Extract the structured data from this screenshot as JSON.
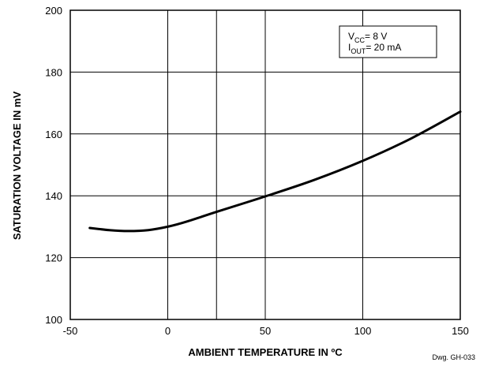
{
  "chart_data": {
    "type": "line",
    "x_ticks": [
      "-50",
      "0",
      "50",
      "100",
      "150"
    ],
    "y_ticks": [
      "100",
      "120",
      "140",
      "160",
      "180",
      "200"
    ],
    "xlim": [
      -50,
      150
    ],
    "ylim": [
      100,
      200
    ],
    "x_gridlines": [
      -50,
      0,
      25,
      50,
      100,
      150
    ],
    "y_gridlines": [
      100,
      120,
      140,
      160,
      180,
      200
    ],
    "grid": true,
    "xlabel": "AMBIENT TEMPERATURE IN ºC",
    "ylabel": "SATURATION VOLTAGE IN mV",
    "series": [
      {
        "x": [
          -40,
          -30,
          -20,
          -10,
          0,
          10,
          25,
          50,
          75,
          100,
          125,
          150
        ],
        "y": [
          129.6,
          128.9,
          128.6,
          128.9,
          130.0,
          131.7,
          134.8,
          139.8,
          145.1,
          151.3,
          158.6,
          167.2
        ]
      }
    ],
    "legend": {
      "position": "top-right",
      "vcc_main": "V",
      "vcc_sub": "CC",
      "vcc_value": "= 8 V",
      "iout_main": "I",
      "iout_sub": "OUT",
      "iout_value": "= 20 mA"
    },
    "drawing_number": "Dwg. GH-033"
  },
  "colors": {
    "line": "#000000",
    "grid": "#000000",
    "background": "#ffffff"
  }
}
